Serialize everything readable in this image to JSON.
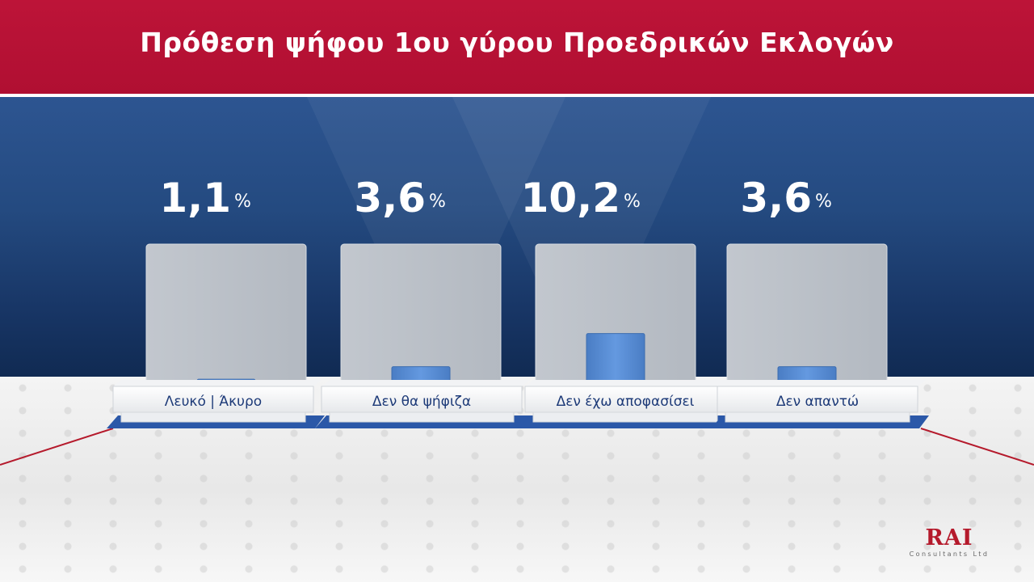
{
  "header": {
    "title": "Πρόθεση ψήφου 1ου γύρου Προεδρικών Εκλογών"
  },
  "chart_data": {
    "type": "bar",
    "title": "Πρόθεση ψήφου 1ου γύρου Προεδρικών Εκλογών",
    "categories": [
      "Λευκό | Άκυρο",
      "Δεν θα ψήφιζα",
      "Δεν έχω αποφασίσει",
      "Δεν απαντώ"
    ],
    "values": [
      1.1,
      3.6,
      10.2,
      3.6
    ],
    "value_labels": [
      "1,1",
      "3,6",
      "10,2",
      "3,6"
    ],
    "unit": "%",
    "ylim": [
      0,
      28
    ],
    "colors": {
      "bar": "#5b8fd6",
      "panel": "#b8bec6",
      "header": "#b8123a",
      "accent_line": "#b51a2c"
    }
  },
  "logo": {
    "name": "RAI",
    "subtitle": "Consultants Ltd"
  }
}
